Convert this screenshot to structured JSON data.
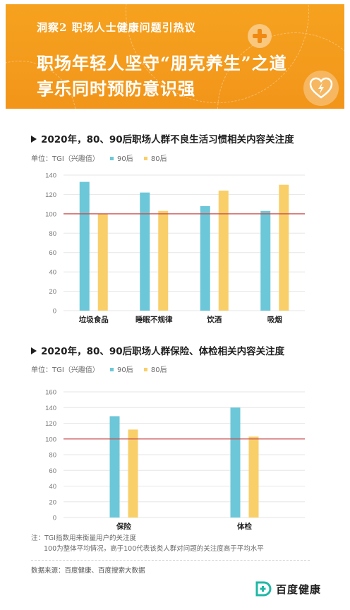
{
  "header": {
    "eyebrow": "洞察2  职场人士健康问题引热议",
    "title_line1": "职场年轻人坚守“朋克养生”之道",
    "title_line2": "享乐同时预防意识强",
    "bg_color": "#f39a1b",
    "icons": [
      "plus-cross-icon",
      "heart-lightning-icon"
    ]
  },
  "legend": {
    "unit_label": "单位：TGI（兴趣值）",
    "series_90": "90后",
    "series_80": "80后",
    "color_90": "#6cc7d8",
    "color_80": "#f9cf6a",
    "reference_line_color": "#c94a4a"
  },
  "chart1_title": "2020年，80、90后职场人群不良生活习惯相关内容关注度",
  "chart2_title": "2020年，80、90后职场人群保险、体检相关内容关注度",
  "chart_data": [
    {
      "type": "bar",
      "title": "2020年，80、90后职场人群不良生活习惯相关内容关注度",
      "categories": [
        "垃圾食品",
        "睡眠不规律",
        "饮酒",
        "吸烟"
      ],
      "series": [
        {
          "name": "90后",
          "values": [
            133,
            122,
            108,
            103
          ]
        },
        {
          "name": "80后",
          "values": [
            100,
            103,
            124,
            130
          ]
        }
      ],
      "ylim": [
        0,
        140
      ],
      "yticks": [
        0,
        20,
        40,
        60,
        80,
        100,
        120,
        140
      ],
      "reference_line": 100,
      "grid": true
    },
    {
      "type": "bar",
      "title": "2020年，80、90后职场人群保险、体检相关内容关注度",
      "categories": [
        "保险",
        "体检"
      ],
      "series": [
        {
          "name": "90后",
          "values": [
            129,
            140
          ]
        },
        {
          "name": "80后",
          "values": [
            112,
            103
          ]
        }
      ],
      "ylim": [
        0,
        160
      ],
      "yticks": [
        0,
        20,
        40,
        60,
        80,
        100,
        120,
        140,
        160
      ],
      "reference_line": 100,
      "grid": true
    }
  ],
  "notes": {
    "line1": "注：TGI指数用来衡量用户的关注度",
    "line2": "100为整体平均情况，高于100代表该类人群对问题的关注度高于平均水平"
  },
  "source": "数据来源：百度健康、百度搜索大数据",
  "brand": {
    "name": "百度健康",
    "logo_color": "#1fb8a6"
  }
}
